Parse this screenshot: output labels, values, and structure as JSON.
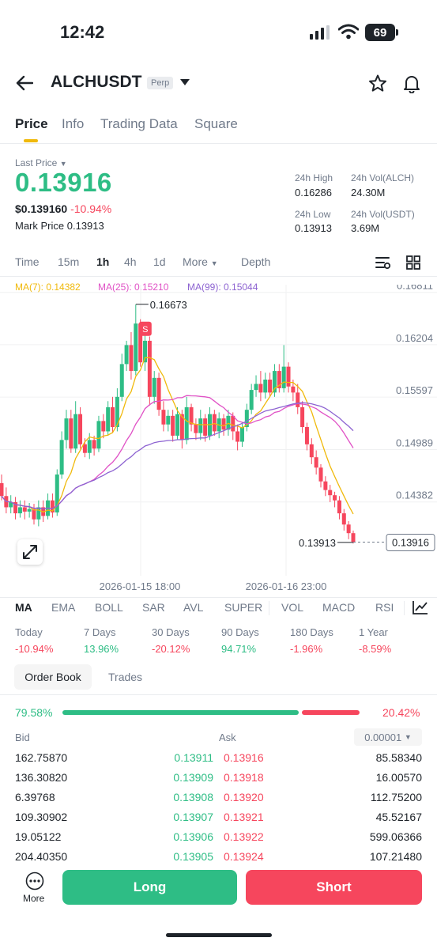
{
  "status": {
    "time": "12:42",
    "battery": "69"
  },
  "header": {
    "symbol": "ALCHUSDT",
    "badge": "Perp"
  },
  "tabs": [
    "Price",
    "Info",
    "Trading Data",
    "Square"
  ],
  "price": {
    "last_label": "Last Price",
    "last": "0.13916",
    "usd": "$0.139160",
    "change": "-10.94%",
    "mark_label": "Mark Price",
    "mark": "0.13913"
  },
  "stats": {
    "high_label": "24h High",
    "high": "0.16286",
    "vol_alch_label": "24h Vol(ALCH)",
    "vol_alch": "24.30M",
    "low_label": "24h Low",
    "low": "0.13913",
    "vol_usdt_label": "24h Vol(USDT)",
    "vol_usdt": "3.69M"
  },
  "timeframes": [
    "Time",
    "15m",
    "1h",
    "4h",
    "1d",
    "More",
    "Depth"
  ],
  "ma_legend": {
    "ma7": "MA(7): 0.14382",
    "ma25": "MA(25): 0.15210",
    "ma99": "MA(99): 0.15044"
  },
  "chart_data": {
    "type": "candlestick",
    "y_ticks": [
      "0.16811",
      "0.16204",
      "0.15597",
      "0.14989",
      "0.14382"
    ],
    "x_ticks": [
      "2026-01-15 18:00",
      "2026-01-16 23:00"
    ],
    "high_marker": "0.16673",
    "low_marker": "0.13913",
    "current_price": "0.13916",
    "sell_marker": "S",
    "ylim": [
      0.136,
      0.169
    ],
    "candles": [
      [
        0.146,
        0.1445,
        0.144,
        0.147
      ],
      [
        0.1445,
        0.1432,
        0.1425,
        0.1455
      ],
      [
        0.1432,
        0.1438,
        0.1425,
        0.1446
      ],
      [
        0.1438,
        0.1425,
        0.1418,
        0.1444
      ],
      [
        0.1425,
        0.1432,
        0.142,
        0.144
      ],
      [
        0.1432,
        0.1427,
        0.1418,
        0.144
      ],
      [
        0.1427,
        0.143,
        0.142,
        0.1437
      ],
      [
        0.143,
        0.1418,
        0.1412,
        0.1436
      ],
      [
        0.1418,
        0.1432,
        0.141,
        0.144
      ],
      [
        0.1432,
        0.1422,
        0.1415,
        0.144
      ],
      [
        0.1422,
        0.144,
        0.1418,
        0.1448
      ],
      [
        0.144,
        0.1426,
        0.142,
        0.1448
      ],
      [
        0.1426,
        0.147,
        0.1422,
        0.1476
      ],
      [
        0.147,
        0.151,
        0.1465,
        0.152
      ],
      [
        0.151,
        0.1535,
        0.15,
        0.1545
      ],
      [
        0.1535,
        0.15,
        0.1495,
        0.1545
      ],
      [
        0.15,
        0.154,
        0.1495,
        0.1555
      ],
      [
        0.154,
        0.1505,
        0.15,
        0.1548
      ],
      [
        0.1505,
        0.1495,
        0.149,
        0.1512
      ],
      [
        0.1495,
        0.151,
        0.1488,
        0.1518
      ],
      [
        0.151,
        0.15,
        0.1492,
        0.1515
      ],
      [
        0.15,
        0.1532,
        0.1496,
        0.1538
      ],
      [
        0.1532,
        0.152,
        0.1512,
        0.154
      ],
      [
        0.152,
        0.1548,
        0.1515,
        0.1555
      ],
      [
        0.1548,
        0.1525,
        0.1518,
        0.156
      ],
      [
        0.1525,
        0.156,
        0.152,
        0.157
      ],
      [
        0.156,
        0.1598,
        0.1555,
        0.161
      ],
      [
        0.1598,
        0.162,
        0.159,
        0.1625
      ],
      [
        0.162,
        0.159,
        0.158,
        0.1635
      ],
      [
        0.159,
        0.1645,
        0.1585,
        0.1667
      ],
      [
        0.1645,
        0.16,
        0.1595,
        0.165
      ],
      [
        0.16,
        0.1625,
        0.159,
        0.1632
      ],
      [
        0.1625,
        0.156,
        0.155,
        0.163
      ],
      [
        0.156,
        0.1582,
        0.1552,
        0.159
      ],
      [
        0.1582,
        0.1545,
        0.1538,
        0.1588
      ],
      [
        0.1545,
        0.1528,
        0.152,
        0.1555
      ],
      [
        0.1528,
        0.1538,
        0.152,
        0.1545
      ],
      [
        0.1538,
        0.1515,
        0.1508,
        0.1545
      ],
      [
        0.1515,
        0.154,
        0.151,
        0.1548
      ],
      [
        0.154,
        0.151,
        0.15,
        0.1545
      ],
      [
        0.151,
        0.1548,
        0.1505,
        0.156
      ],
      [
        0.1548,
        0.1528,
        0.152,
        0.1552
      ],
      [
        0.1528,
        0.1518,
        0.151,
        0.1535
      ],
      [
        0.1518,
        0.1535,
        0.151,
        0.1545
      ],
      [
        0.1535,
        0.1515,
        0.1508,
        0.154
      ],
      [
        0.1515,
        0.154,
        0.151,
        0.1548
      ],
      [
        0.154,
        0.152,
        0.1515,
        0.1545
      ],
      [
        0.152,
        0.1535,
        0.1512,
        0.1542
      ],
      [
        0.1535,
        0.1522,
        0.1515,
        0.154
      ],
      [
        0.1522,
        0.1538,
        0.1515,
        0.1545
      ],
      [
        0.1538,
        0.152,
        0.151,
        0.1542
      ],
      [
        0.152,
        0.1508,
        0.1498,
        0.1528
      ],
      [
        0.1508,
        0.1525,
        0.1502,
        0.153
      ],
      [
        0.1525,
        0.1545,
        0.152,
        0.1552
      ],
      [
        0.1545,
        0.1568,
        0.154,
        0.1575
      ],
      [
        0.1568,
        0.1575,
        0.156,
        0.1585
      ],
      [
        0.1575,
        0.1565,
        0.1555,
        0.159
      ],
      [
        0.1565,
        0.158,
        0.1558,
        0.1588
      ],
      [
        0.158,
        0.1565,
        0.156,
        0.1588
      ],
      [
        0.1565,
        0.159,
        0.156,
        0.1598
      ],
      [
        0.159,
        0.157,
        0.1565,
        0.1598
      ],
      [
        0.157,
        0.1595,
        0.1565,
        0.162
      ],
      [
        0.1595,
        0.1572,
        0.1565,
        0.16
      ],
      [
        0.1572,
        0.1565,
        0.1555,
        0.158
      ],
      [
        0.1565,
        0.1548,
        0.154,
        0.1575
      ],
      [
        0.1548,
        0.1525,
        0.1518,
        0.1555
      ],
      [
        0.1525,
        0.1505,
        0.1498,
        0.153
      ],
      [
        0.1505,
        0.149,
        0.1482,
        0.1512
      ],
      [
        0.149,
        0.1478,
        0.147,
        0.1498
      ],
      [
        0.1478,
        0.1462,
        0.1455,
        0.1482
      ],
      [
        0.1462,
        0.1452,
        0.1445,
        0.1468
      ],
      [
        0.1452,
        0.1446,
        0.1438,
        0.1458
      ],
      [
        0.1446,
        0.144,
        0.1432,
        0.145
      ],
      [
        0.144,
        0.1425,
        0.1418,
        0.1445
      ],
      [
        0.1425,
        0.1412,
        0.1405,
        0.143
      ],
      [
        0.1412,
        0.1402,
        0.1395,
        0.1416
      ],
      [
        0.1402,
        0.1392,
        0.139,
        0.1405
      ]
    ]
  },
  "indicators": [
    "MA",
    "EMA",
    "BOLL",
    "SAR",
    "AVL",
    "SUPER",
    "VOL",
    "MACD",
    "RSI"
  ],
  "performance": [
    {
      "label": "Today",
      "value": "-10.94%",
      "dir": "down"
    },
    {
      "label": "7 Days",
      "value": "13.96%",
      "dir": "up"
    },
    {
      "label": "30 Days",
      "value": "-20.12%",
      "dir": "down"
    },
    {
      "label": "90 Days",
      "value": "94.71%",
      "dir": "up"
    },
    {
      "label": "180 Days",
      "value": "-1.96%",
      "dir": "down"
    },
    {
      "label": "1 Year",
      "value": "-8.59%",
      "dir": "down"
    }
  ],
  "orderbook": {
    "tabs": [
      "Order Book",
      "Trades"
    ],
    "bid_pct": "79.58%",
    "ask_pct": "20.42%",
    "bid_ratio": 0.7958,
    "bid_label": "Bid",
    "ask_label": "Ask",
    "precision": "0.00001",
    "rows": [
      {
        "bid_qty": "162.75870",
        "bid": "0.13911",
        "ask": "0.13916",
        "ask_qty": "85.58340"
      },
      {
        "bid_qty": "136.30820",
        "bid": "0.13909",
        "ask": "0.13918",
        "ask_qty": "16.00570"
      },
      {
        "bid_qty": "6.39768",
        "bid": "0.13908",
        "ask": "0.13920",
        "ask_qty": "112.75200"
      },
      {
        "bid_qty": "109.30902",
        "bid": "0.13907",
        "ask": "0.13921",
        "ask_qty": "45.52167"
      },
      {
        "bid_qty": "19.05122",
        "bid": "0.13906",
        "ask": "0.13922",
        "ask_qty": "599.06366"
      },
      {
        "bid_qty": "204.40350",
        "bid": "0.13905",
        "ask": "0.13924",
        "ask_qty": "107.21480"
      }
    ]
  },
  "bottom": {
    "more": "More",
    "long": "Long",
    "short": "Short"
  },
  "colors": {
    "up": "#2ebd85",
    "down": "#f6465d",
    "ma7": "#f0b90b",
    "ma25": "#e052c6",
    "ma99": "#8d63d1",
    "accent": "#f0b90b"
  }
}
